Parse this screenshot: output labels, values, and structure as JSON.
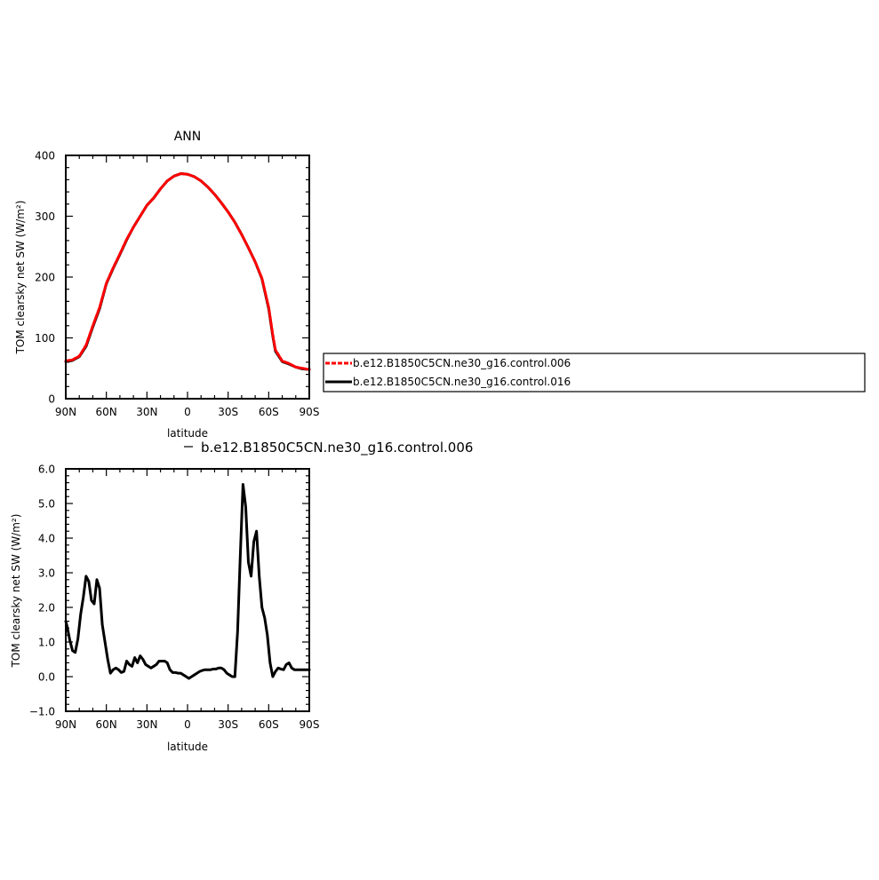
{
  "chart_data": [
    {
      "type": "line",
      "title": "ANN",
      "xlabel": "latitude",
      "ylabel": "TOM clearsky net SW (W/m²)",
      "xlim": [
        90,
        -90
      ],
      "ylim": [
        0,
        400
      ],
      "xticks": [
        {
          "value": 90,
          "label": "90N"
        },
        {
          "value": 60,
          "label": "60N"
        },
        {
          "value": 30,
          "label": "30N"
        },
        {
          "value": 0,
          "label": "0"
        },
        {
          "value": -30,
          "label": "30S"
        },
        {
          "value": -60,
          "label": "60S"
        },
        {
          "value": -90,
          "label": "90S"
        }
      ],
      "yticks": [
        {
          "value": 0,
          "label": "0"
        },
        {
          "value": 100,
          "label": "100"
        },
        {
          "value": 200,
          "label": "200"
        },
        {
          "value": 300,
          "label": "300"
        },
        {
          "value": 400,
          "label": "400"
        }
      ],
      "grid": false,
      "legend_position": "right",
      "series": [
        {
          "name": "b.e12.B1850C5CN.ne30_g16.control.006",
          "color": "#ff0000",
          "dash": true,
          "x": [
            90,
            85,
            80,
            75,
            70,
            65,
            60,
            55,
            50,
            45,
            40,
            35,
            30,
            25,
            20,
            15,
            10,
            5,
            0,
            -5,
            -10,
            -15,
            -20,
            -25,
            -30,
            -35,
            -40,
            -45,
            -50,
            -55,
            -60,
            -63,
            -65,
            -70,
            -75,
            -80,
            -85,
            -90
          ],
          "y": [
            62,
            64,
            70,
            88,
            120,
            150,
            190,
            215,
            238,
            262,
            282,
            300,
            318,
            330,
            345,
            358,
            366,
            370,
            369,
            365,
            358,
            348,
            336,
            322,
            307,
            290,
            270,
            248,
            225,
            198,
            150,
            105,
            80,
            62,
            58,
            52,
            50,
            48
          ]
        },
        {
          "name": "b.e12.B1850C5CN.ne30_g16.control.016",
          "color": "#000000",
          "dash": false,
          "x": [
            90,
            85,
            80,
            75,
            70,
            65,
            60,
            55,
            50,
            45,
            40,
            35,
            30,
            25,
            20,
            15,
            10,
            5,
            0,
            -5,
            -10,
            -15,
            -20,
            -25,
            -30,
            -35,
            -40,
            -45,
            -50,
            -55,
            -60,
            -63,
            -65,
            -70,
            -75,
            -80,
            -85,
            -90
          ],
          "y": [
            61,
            63,
            69,
            86,
            118,
            148,
            189,
            214,
            237,
            261,
            282,
            300,
            318,
            330,
            345,
            358,
            366,
            370,
            369,
            365,
            358,
            348,
            336,
            322,
            307,
            290,
            270,
            248,
            225,
            197,
            148,
            103,
            78,
            61,
            57,
            52,
            49,
            48
          ]
        }
      ]
    },
    {
      "type": "line",
      "title": "b.e12.B1850C5CN.ne30_g16.control.006",
      "xlabel": "latitude",
      "ylabel": "TOM clearsky net SW (W/m²)",
      "xlim": [
        90,
        -90
      ],
      "ylim": [
        -1.0,
        6.0
      ],
      "xticks": [
        {
          "value": 90,
          "label": "90N"
        },
        {
          "value": 60,
          "label": "60N"
        },
        {
          "value": 30,
          "label": "30N"
        },
        {
          "value": 0,
          "label": "0"
        },
        {
          "value": -30,
          "label": "30S"
        },
        {
          "value": -60,
          "label": "60S"
        },
        {
          "value": -90,
          "label": "90S"
        }
      ],
      "yticks": [
        {
          "value": -1,
          "label": "−1.0"
        },
        {
          "value": 0,
          "label": "0.0"
        },
        {
          "value": 1,
          "label": "1.0"
        },
        {
          "value": 2,
          "label": "2.0"
        },
        {
          "value": 3,
          "label": "3.0"
        },
        {
          "value": 4,
          "label": "4.0"
        },
        {
          "value": 5,
          "label": "5.0"
        },
        {
          "value": 6,
          "label": "6.0"
        }
      ],
      "grid": false,
      "series": [
        {
          "color": "#000000",
          "x": [
            90,
            89,
            87,
            85,
            83,
            81,
            79,
            77,
            75,
            73,
            71,
            69,
            67,
            65,
            63,
            61,
            59,
            57,
            55,
            53,
            51,
            49,
            47,
            45,
            43,
            41,
            39,
            37,
            35,
            33,
            31,
            29,
            27,
            25,
            23,
            21,
            19,
            17,
            15,
            13,
            11,
            9,
            7,
            5,
            3,
            1,
            -1,
            -3,
            -5,
            -7,
            -9,
            -11,
            -13,
            -15,
            -17,
            -19,
            -21,
            -23,
            -25,
            -27,
            -29,
            -31,
            -33,
            -35,
            -37,
            -39,
            -41,
            -43,
            -45,
            -47,
            -49,
            -51,
            -53,
            -55,
            -57,
            -59,
            -61,
            -63,
            -65,
            -67,
            -69,
            -71,
            -73,
            -75,
            -77,
            -79,
            -81,
            -83,
            -85,
            -87,
            -89,
            -90
          ],
          "y": [
            1.6,
            1.45,
            1.05,
            0.75,
            0.7,
            1.1,
            1.8,
            2.3,
            2.9,
            2.75,
            2.2,
            2.1,
            2.8,
            2.55,
            1.5,
            1.0,
            0.5,
            0.1,
            0.2,
            0.25,
            0.2,
            0.12,
            0.15,
            0.45,
            0.35,
            0.3,
            0.55,
            0.4,
            0.6,
            0.5,
            0.35,
            0.3,
            0.25,
            0.3,
            0.35,
            0.45,
            0.45,
            0.45,
            0.4,
            0.2,
            0.12,
            0.12,
            0.1,
            0.1,
            0.05,
            0.0,
            -0.05,
            0.0,
            0.05,
            0.1,
            0.15,
            0.18,
            0.2,
            0.2,
            0.2,
            0.22,
            0.22,
            0.25,
            0.25,
            0.2,
            0.1,
            0.05,
            0.0,
            0.0,
            1.3,
            3.5,
            5.55,
            4.9,
            3.3,
            2.9,
            3.9,
            4.2,
            2.9,
            2.0,
            1.7,
            1.2,
            0.4,
            0.0,
            0.15,
            0.25,
            0.22,
            0.2,
            0.35,
            0.4,
            0.25,
            0.2,
            0.2,
            0.2,
            0.2,
            0.2,
            0.2,
            0.2
          ]
        }
      ]
    }
  ]
}
